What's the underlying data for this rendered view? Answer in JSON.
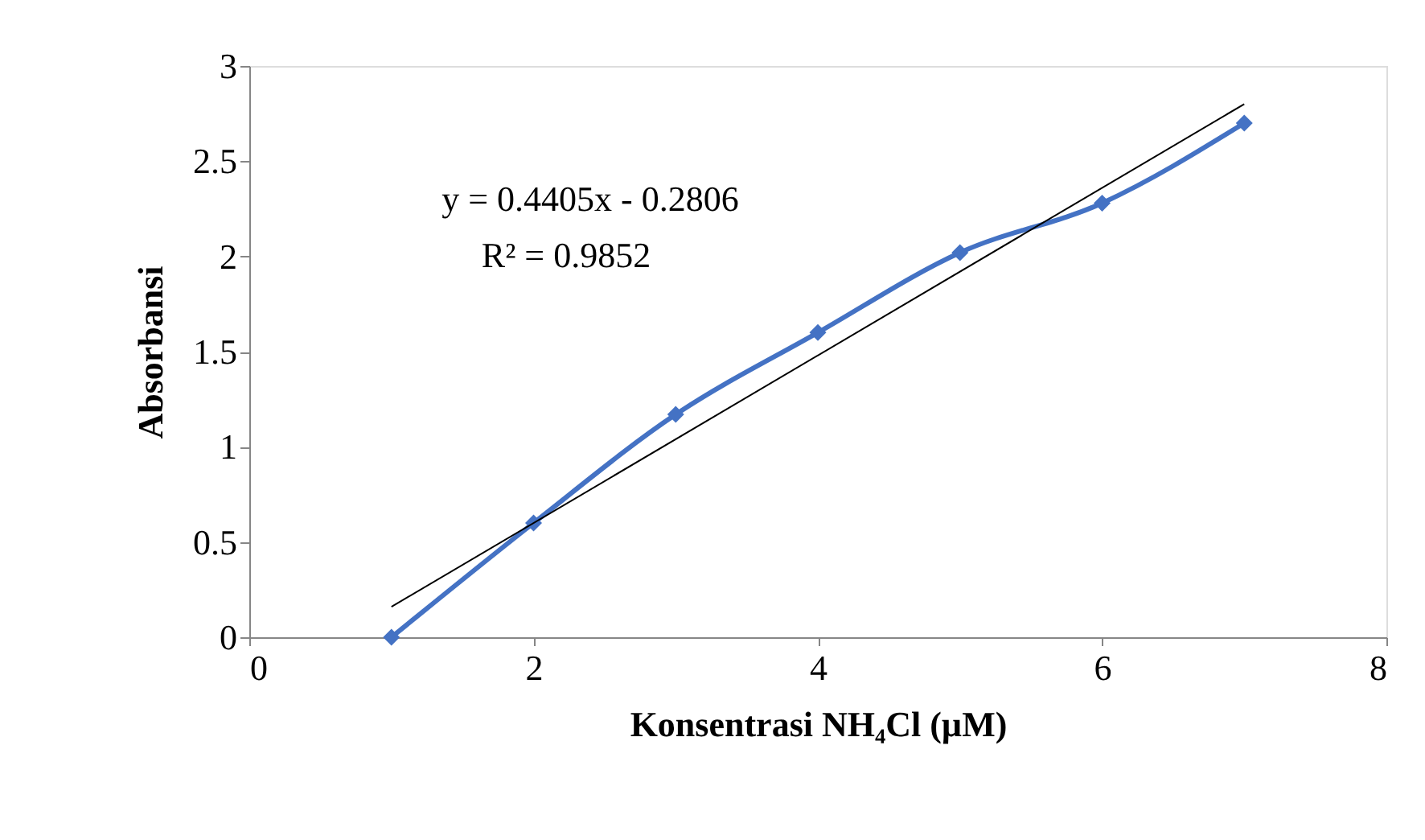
{
  "chart_data": {
    "type": "line",
    "xlabel": "Konsentrasi NH₄Cl (µM)",
    "ylabel": "Absorbansi",
    "xlim": [
      0,
      8
    ],
    "xticks": [
      0,
      2,
      4,
      6,
      8
    ],
    "ylim": [
      0,
      3
    ],
    "yticks": [
      0,
      0.5,
      1,
      1.5,
      2,
      2.5,
      3
    ],
    "grid": false,
    "annotations": [
      "y = 0.4405x - 0.2806",
      "R² = 0.9852"
    ],
    "series": [
      {
        "color": "#4472c4",
        "marker": "diamond",
        "line_style": "solid",
        "x": [
          1,
          2,
          3,
          4,
          5,
          6,
          7
        ],
        "values": [
          0,
          0.6,
          1.17,
          1.6,
          2.02,
          2.28,
          2.7
        ]
      },
      {
        "color": "#000000",
        "marker": "none",
        "line_style": "solid",
        "x": [
          1,
          7
        ],
        "values": [
          0.16,
          2.8
        ]
      }
    ]
  }
}
